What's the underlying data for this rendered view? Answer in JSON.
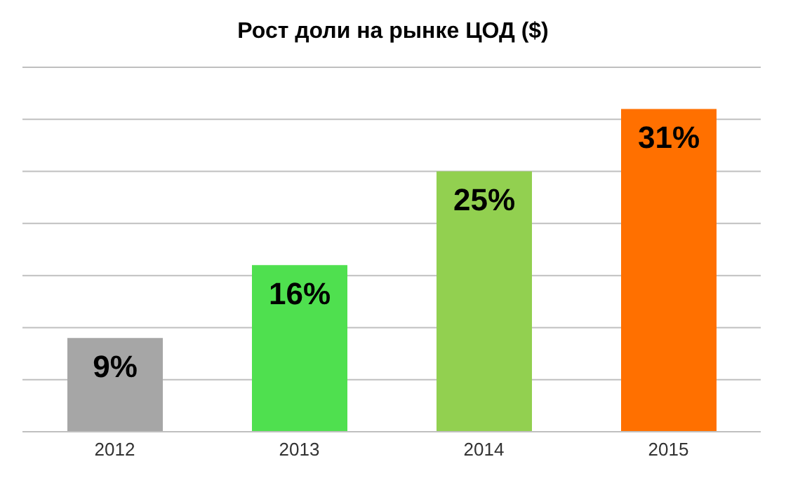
{
  "chart_data": {
    "type": "bar",
    "title": "Рост доли на рынке ЦОД ($)",
    "categories": [
      "2012",
      "2013",
      "2014",
      "2015"
    ],
    "values": [
      9,
      16,
      25,
      31
    ],
    "colors": [
      "#a6a6a6",
      "#4fe04f",
      "#92d050",
      "#ff7000"
    ],
    "value_labels": [
      "9%",
      "16%",
      "25%",
      "31%"
    ],
    "ylim": [
      0,
      35
    ],
    "yticks": [
      {
        "value": 0,
        "label": null
      },
      {
        "value": 5,
        "label": null
      },
      {
        "value": 10,
        "label": null
      },
      {
        "value": 15,
        "label": null
      },
      {
        "value": 20,
        "label": null
      },
      {
        "value": 25,
        "label": null
      },
      {
        "value": 30,
        "label": null
      },
      {
        "value": 35,
        "label": null
      }
    ],
    "grid": "y",
    "tick_labels": "x"
  }
}
